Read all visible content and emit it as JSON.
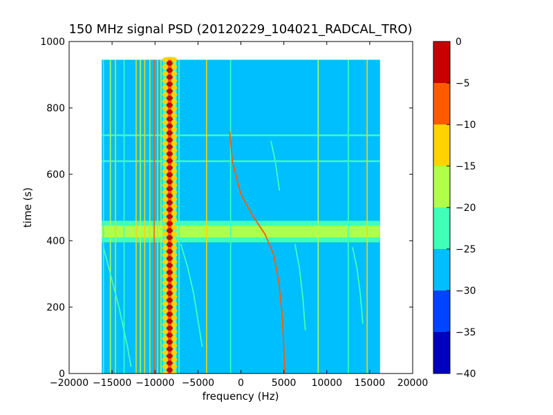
{
  "chart_data": {
    "type": "heatmap",
    "title": "150 MHz signal PSD (20120229_104021_RADCAL_TRO)",
    "xlabel": "frequency (Hz)",
    "ylabel": "time (s)",
    "xlim": [
      -20000,
      20000
    ],
    "ylim": [
      0,
      1000
    ],
    "x_ticks": [
      -20000,
      -15000,
      -10000,
      -5000,
      0,
      5000,
      10000,
      15000,
      20000
    ],
    "y_ticks": [
      0,
      200,
      400,
      600,
      800,
      1000
    ],
    "data_extent": {
      "x": [
        -16200,
        16200
      ],
      "y": [
        0,
        945
      ]
    },
    "background_level": -27.5,
    "colorbar": {
      "levels": [
        -40,
        -35,
        -30,
        -25,
        -20,
        -15,
        -10,
        -5,
        0
      ],
      "colors": [
        "#0000bf",
        "#0044ff",
        "#00bfff",
        "#40ffb8",
        "#b0ff48",
        "#ffd200",
        "#ff5a00",
        "#c80000"
      ]
    },
    "vertical_lines": [
      {
        "x": -16000,
        "level": -22
      },
      {
        "x": -15200,
        "level": -19
      },
      {
        "x": -14600,
        "level": -14
      },
      {
        "x": -13600,
        "level": -22
      },
      {
        "x": -12200,
        "level": -14
      },
      {
        "x": -11700,
        "level": -19
      },
      {
        "x": -11200,
        "level": -14
      },
      {
        "x": -10600,
        "level": -14
      },
      {
        "x": -10100,
        "level": -8
      },
      {
        "x": -9700,
        "level": -14
      },
      {
        "x": -9300,
        "level": -19
      },
      {
        "x": -8300,
        "level": -2
      },
      {
        "x": -7700,
        "level": -19
      },
      {
        "x": -7200,
        "level": -22
      },
      {
        "x": -4000,
        "level": -14
      },
      {
        "x": -1200,
        "level": -22
      },
      {
        "x": 9000,
        "level": -19
      },
      {
        "x": 14700,
        "level": -14
      },
      {
        "x": 12500,
        "level": -22
      }
    ],
    "horizontal_bands": [
      {
        "y": [
          395,
          460
        ],
        "level": -22
      },
      {
        "y": [
          410,
          445
        ],
        "level": -19
      },
      {
        "y": [
          715,
          720
        ],
        "level": -22
      },
      {
        "y": [
          637,
          642
        ],
        "level": -22
      }
    ],
    "sweep_curves": [
      {
        "level": -10,
        "points": [
          [
            -1300,
            730
          ],
          [
            -1000,
            640
          ],
          [
            0,
            540
          ],
          [
            1500,
            470
          ],
          [
            2800,
            420
          ],
          [
            3800,
            360
          ],
          [
            4400,
            280
          ],
          [
            4800,
            180
          ],
          [
            5000,
            80
          ],
          [
            5100,
            0
          ]
        ]
      },
      {
        "level": -22,
        "points": [
          [
            -16000,
            380
          ],
          [
            -15500,
            330
          ],
          [
            -14800,
            260
          ],
          [
            -14200,
            200
          ],
          [
            -13700,
            140
          ],
          [
            -13200,
            80
          ],
          [
            -12800,
            20
          ]
        ]
      },
      {
        "level": -22,
        "points": [
          [
            -7000,
            390
          ],
          [
            -6200,
            320
          ],
          [
            -5500,
            240
          ],
          [
            -5000,
            160
          ],
          [
            -4500,
            80
          ]
        ]
      },
      {
        "level": -22,
        "points": [
          [
            3500,
            700
          ],
          [
            4000,
            640
          ],
          [
            4500,
            550
          ]
        ]
      },
      {
        "level": -22,
        "points": [
          [
            6300,
            390
          ],
          [
            6800,
            320
          ],
          [
            7200,
            230
          ],
          [
            7500,
            130
          ]
        ]
      },
      {
        "level": -22,
        "points": [
          [
            13000,
            380
          ],
          [
            13500,
            320
          ],
          [
            13900,
            240
          ],
          [
            14200,
            150
          ]
        ]
      }
    ],
    "center_feature": {
      "x": -8300,
      "level": 0,
      "spacing": 21,
      "halo_level": -14
    }
  }
}
